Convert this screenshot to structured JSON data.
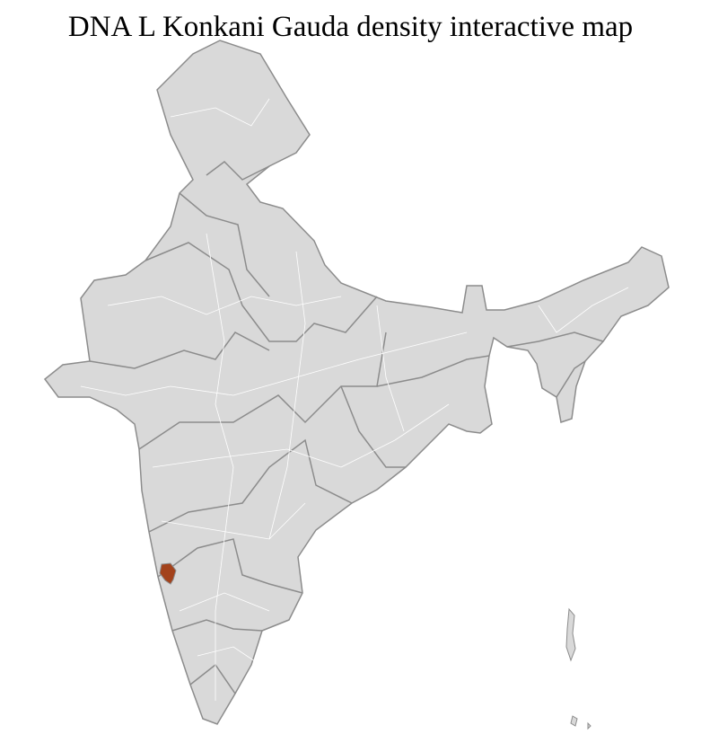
{
  "title": "DNA L Konkani Gauda density interactive map",
  "colors": {
    "base_fill": "#d9d9d9",
    "district_border": "#ffffff",
    "state_border": "#8c8c8c",
    "highlight_fill": "#a3421b"
  }
}
